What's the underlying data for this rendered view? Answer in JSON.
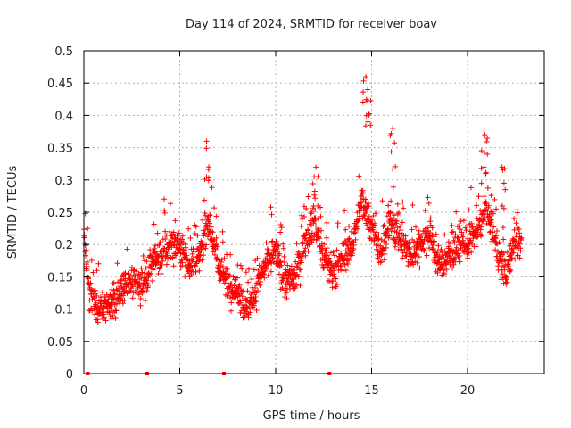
{
  "chart_data": {
    "type": "scatter",
    "title": "Day 114 of 2024, SRMTID for receiver boav",
    "xlabel": "GPS time / hours",
    "ylabel": "SRMTID / TECUs",
    "xlim": [
      0,
      24
    ],
    "ylim": [
      0,
      0.5
    ],
    "grid": true,
    "marker": "+",
    "marker_color": "#ff0000",
    "xticks": [
      0,
      5,
      10,
      15,
      20
    ],
    "xtick_labels": [
      "0",
      "5",
      "10",
      "15",
      "20"
    ],
    "yticks": [
      0,
      0.05,
      0.1,
      0.15,
      0.2,
      0.25,
      0.3,
      0.35,
      0.4,
      0.45,
      0.5
    ],
    "ytick_labels": [
      "0",
      "0.05",
      "0.1",
      "0.15",
      "0.2",
      "0.25",
      "0.3",
      "0.35",
      "0.4",
      "0.45",
      "0.5"
    ],
    "trend": [
      [
        0.0,
        0.22
      ],
      [
        0.3,
        0.12
      ],
      [
        0.8,
        0.1
      ],
      [
        1.5,
        0.11
      ],
      [
        2.0,
        0.13
      ],
      [
        2.5,
        0.14
      ],
      [
        3.0,
        0.13
      ],
      [
        3.5,
        0.17
      ],
      [
        4.0,
        0.18
      ],
      [
        4.5,
        0.2
      ],
      [
        5.0,
        0.2
      ],
      [
        5.5,
        0.17
      ],
      [
        6.0,
        0.18
      ],
      [
        6.5,
        0.24
      ],
      [
        7.0,
        0.17
      ],
      [
        7.5,
        0.14
      ],
      [
        8.0,
        0.13
      ],
      [
        8.5,
        0.1
      ],
      [
        9.0,
        0.13
      ],
      [
        9.5,
        0.17
      ],
      [
        10.0,
        0.19
      ],
      [
        10.5,
        0.14
      ],
      [
        11.0,
        0.15
      ],
      [
        11.5,
        0.2
      ],
      [
        12.0,
        0.24
      ],
      [
        12.5,
        0.18
      ],
      [
        13.0,
        0.15
      ],
      [
        13.5,
        0.18
      ],
      [
        14.0,
        0.2
      ],
      [
        14.5,
        0.27
      ],
      [
        15.0,
        0.23
      ],
      [
        15.5,
        0.18
      ],
      [
        16.0,
        0.24
      ],
      [
        16.5,
        0.21
      ],
      [
        17.0,
        0.18
      ],
      [
        17.5,
        0.2
      ],
      [
        18.0,
        0.22
      ],
      [
        18.5,
        0.17
      ],
      [
        19.0,
        0.18
      ],
      [
        19.5,
        0.2
      ],
      [
        20.0,
        0.2
      ],
      [
        20.5,
        0.22
      ],
      [
        21.0,
        0.26
      ],
      [
        21.5,
        0.2
      ],
      [
        22.0,
        0.15
      ],
      [
        22.5,
        0.21
      ],
      [
        22.8,
        0.21
      ]
    ],
    "peaks": [
      {
        "x": 6.4,
        "y": 0.36
      },
      {
        "x": 12.1,
        "y": 0.32
      },
      {
        "x": 14.7,
        "y": 0.46
      },
      {
        "x": 14.8,
        "y": 0.44
      },
      {
        "x": 16.1,
        "y": 0.38
      },
      {
        "x": 20.9,
        "y": 0.37
      },
      {
        "x": 21.8,
        "y": 0.32
      }
    ],
    "point_count": 1800,
    "x_range": [
      0.0,
      22.8
    ],
    "zero_markers": [
      0.2,
      3.3,
      7.3,
      12.8
    ]
  }
}
